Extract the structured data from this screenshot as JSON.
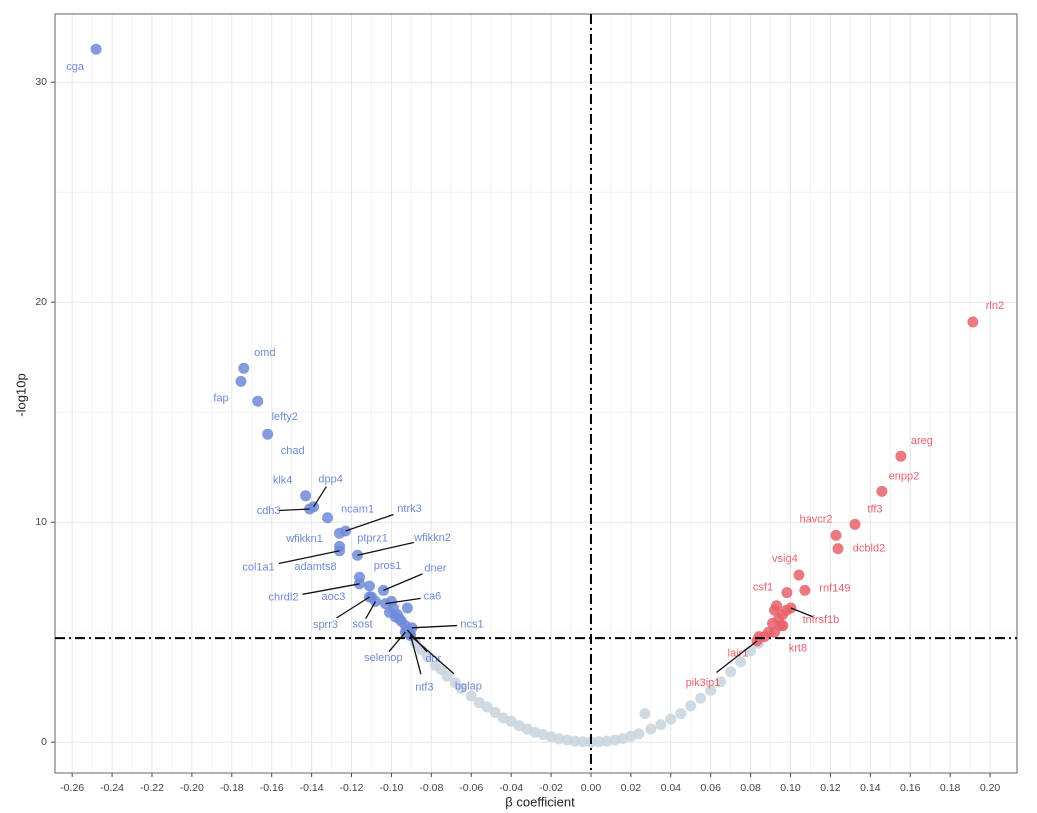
{
  "chart_data": {
    "type": "scatter",
    "x_label": "β coefficient",
    "y_label": "-log10p",
    "xlim": [
      -0.2686,
      0.2135
    ],
    "ylim": [
      -1.4,
      33.1
    ],
    "xticks": [
      -0.26,
      -0.24,
      -0.22,
      {
        "value": -0.2,
        "label": "-0.20"
      },
      -0.18,
      -0.16,
      -0.14,
      -0.12,
      {
        "value": -0.1,
        "label": "-0.10"
      },
      -0.08,
      -0.06,
      -0.04,
      -0.02,
      {
        "value": 0,
        "label": "0.00"
      },
      0.02,
      0.04,
      0.06,
      0.08,
      {
        "value": 0.1,
        "label": "0.10"
      },
      0.12,
      0.14,
      0.16,
      0.18,
      {
        "value": 0.2,
        "label": "0.20"
      }
    ],
    "yticks": [
      0,
      10,
      20,
      30
    ],
    "grid": true,
    "hline": 4.73,
    "vline": 0,
    "series": [
      {
        "color": "#c8d3de",
        "x": [
          -0.088,
          -0.085,
          -0.082,
          -0.078,
          -0.075,
          -0.072,
          -0.068,
          -0.065,
          -0.06,
          -0.056,
          -0.052,
          -0.048,
          -0.044,
          -0.04,
          -0.036,
          -0.032,
          -0.028,
          -0.024,
          -0.02,
          -0.016,
          -0.012,
          -0.008,
          -0.004,
          0,
          0.004,
          0.008,
          0.012,
          0.016,
          0.02,
          0.024,
          0.027,
          0.03,
          0.035,
          0.04,
          0.045,
          0.05,
          0.055,
          0.06,
          0.065,
          0.07,
          0.075,
          0.08,
          0.084
        ],
        "values": [
          4.5,
          4.2,
          3.9,
          3.5,
          3.3,
          3.0,
          2.7,
          2.45,
          2.1,
          1.8,
          1.6,
          1.35,
          1.1,
          0.95,
          0.75,
          0.6,
          0.45,
          0.35,
          0.25,
          0.15,
          0.1,
          0.05,
          0.02,
          0,
          0.02,
          0.05,
          0.1,
          0.17,
          0.27,
          0.38,
          1.3,
          0.6,
          0.8,
          1.05,
          1.3,
          1.65,
          2.0,
          2.35,
          2.75,
          3.2,
          3.65,
          4.15,
          4.5
        ]
      },
      {
        "color": "#6f89d8",
        "x": [
          -0.248,
          -0.174,
          -0.1754,
          -0.167,
          -0.162,
          -0.143,
          -0.139,
          -0.141,
          -0.132,
          -0.123,
          -0.126,
          -0.126,
          -0.117,
          -0.126,
          -0.116,
          -0.111,
          -0.104,
          -0.116,
          -0.11,
          -0.103,
          -0.111,
          -0.108,
          -0.0897,
          -0.093,
          -0.092,
          -0.0905,
          -0.0905,
          -0.099,
          -0.097,
          -0.101,
          -0.095,
          -0.093,
          -0.092,
          -0.1,
          -0.098,
          -0.092,
          -0.096
        ],
        "values": [
          31.5,
          17.0,
          16.4,
          15.5,
          14.0,
          11.2,
          10.7,
          10.6,
          10.2,
          9.6,
          9.5,
          8.9,
          8.5,
          8.7,
          7.5,
          7.1,
          6.9,
          7.2,
          6.6,
          6.3,
          6.6,
          6.4,
          5.2,
          5.0,
          5.1,
          4.9,
          4.85,
          6.1,
          5.8,
          5.9,
          5.5,
          5.3,
          5.1,
          6.4,
          5.7,
          6.1,
          5.6
        ],
        "labels": [
          "cga",
          "omd",
          "fap",
          "lefty2",
          "chad",
          "klk4",
          "dpp4",
          "cdh3",
          "ncam1",
          "ntrk3",
          "wfikkn1",
          "ptprz1",
          "wfikkn2",
          "col1a1",
          "adamts8",
          "pros1",
          "dner",
          "chrdl2",
          "aoc3",
          "ca6",
          "sprr3",
          "sost",
          "ncs1",
          "selenop",
          "dnr",
          "ntf3",
          "bglap",
          null,
          null,
          null,
          null,
          null,
          null,
          null,
          null,
          null,
          null
        ]
      },
      {
        "color": "#e8616b",
        "x": [
          0.1914,
          0.1553,
          0.1458,
          0.1323,
          0.1228,
          0.1238,
          0.1042,
          0.0982,
          0.1072,
          0.1002,
          0.0962,
          0.0842,
          0.0832,
          0.092,
          0.094,
          0.096,
          0.092,
          0.089,
          0.093,
          0.087,
          0.098,
          0.091,
          0.095
        ],
        "values": [
          19.1,
          13.0,
          11.4,
          9.9,
          9.4,
          8.8,
          7.6,
          6.8,
          6.9,
          6.1,
          5.3,
          4.8,
          4.6,
          6.0,
          5.6,
          5.8,
          5.0,
          5.0,
          6.2,
          4.8,
          6.0,
          5.4,
          5.3
        ],
        "labels": [
          "rln2",
          "areg",
          "enpp2",
          "tff3",
          "havcr2",
          "dcbld2",
          "vsig4",
          "csf1",
          "rnf149",
          "tnfrsf1b",
          "krt8",
          "lair1",
          "pik3ip1",
          null,
          null,
          null,
          null,
          null,
          null,
          null,
          null,
          null,
          null
        ]
      }
    ]
  }
}
